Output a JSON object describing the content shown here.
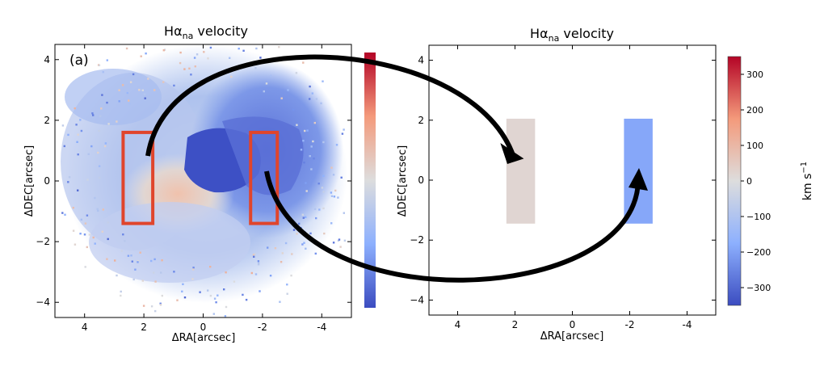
{
  "chart_data": [
    {
      "type": "heatmap",
      "title_main": "Hα",
      "title_sub": "na",
      "title_rest": " velocity",
      "panel_label": "(a)",
      "xlabel": "ΔRA[arcsec]",
      "ylabel": "ΔDEC[arcsec]",
      "xlim": [
        5,
        -5
      ],
      "ylim": [
        -4.5,
        4.5
      ],
      "xticks": [
        4,
        2,
        0,
        -2,
        -4
      ],
      "xtick_labels": [
        "4",
        "2",
        "0",
        "-2",
        "-4"
      ],
      "yticks": [
        4,
        2,
        0,
        -2,
        -4
      ],
      "ytick_labels": [
        "4",
        "2",
        "0",
        "−2",
        "−4"
      ],
      "value_range": [
        -350,
        350
      ],
      "regions": [
        {
          "name": "approaching-side slit",
          "x_range": [
            1.7,
            2.7
          ],
          "y_range": [
            -1.4,
            1.6
          ],
          "color": "#e0452c"
        },
        {
          "name": "receding-side slit",
          "x_range": [
            -2.5,
            -1.6
          ],
          "y_range": [
            -1.4,
            1.6
          ],
          "color": "#e0452c"
        }
      ]
    },
    {
      "type": "heatmap",
      "title_main": "Hα",
      "title_sub": "na",
      "title_rest": " velocity",
      "xlabel": "ΔRA[arcsec]",
      "ylabel": "ΔDEC[arcsec]",
      "xlim": [
        5,
        -5
      ],
      "ylim": [
        -4.5,
        4.5
      ],
      "xticks": [
        4,
        2,
        0,
        -2,
        -4
      ],
      "xtick_labels": [
        "4",
        "2",
        "0",
        "-2",
        "-4"
      ],
      "yticks": [
        4,
        2,
        0,
        -2,
        -4
      ],
      "ytick_labels": [
        "4",
        "2",
        "0",
        "−2",
        "−4"
      ],
      "value_range": [
        -350,
        350
      ],
      "colorbar_label": "km s",
      "colorbar_label_exp": "−1",
      "colorbar_ticks": [
        300,
        200,
        100,
        0,
        -100,
        -200,
        -300
      ],
      "colorbar_tick_labels": [
        "300",
        "200",
        "100",
        "0",
        "−100",
        "−200",
        "−300"
      ],
      "cells": [
        {
          "x_range": [
            1.3,
            2.3
          ],
          "y_range": [
            -1.45,
            2.05
          ],
          "velocity": 20
        },
        {
          "x_range": [
            -1.8,
            -2.8
          ],
          "y_range": [
            -1.45,
            2.05
          ],
          "velocity": -190
        }
      ]
    }
  ],
  "colormap": {
    "low": "#3b4cc0",
    "mid": "#dddddd",
    "high": "#b40426"
  }
}
